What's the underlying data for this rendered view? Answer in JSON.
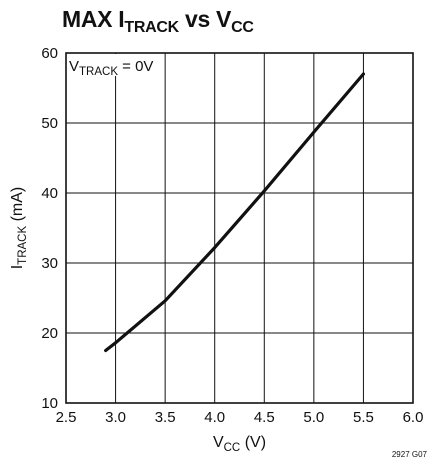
{
  "chart_data": {
    "type": "line",
    "title": {
      "main": "MAX I",
      "sub": "TRACK",
      "mid": " vs V",
      "sub2": "CC"
    },
    "xlabel": {
      "main": "V",
      "sub": "CC",
      "unit": " (V)"
    },
    "ylabel": {
      "main": "I",
      "sub": "TRACK",
      "unit": " (mA)"
    },
    "xlim": [
      2.5,
      6.0
    ],
    "ylim": [
      10,
      60
    ],
    "x_ticks": [
      "2.5",
      "3.0",
      "3.5",
      "4.0",
      "4.5",
      "5.0",
      "5.5",
      "6.0"
    ],
    "y_ticks": [
      "10",
      "20",
      "30",
      "40",
      "50",
      "60"
    ],
    "grid": true,
    "annotation": {
      "main": "V",
      "sub": "TRACK",
      "rest": " = 0V"
    },
    "figure_code": "2927 G07",
    "line_color": "#111111",
    "series": [
      {
        "x": [
          2.9,
          3.0,
          3.5,
          4.0,
          4.5,
          5.0,
          5.5
        ],
        "y": [
          17.5,
          18.6,
          24.6,
          32.2,
          40.3,
          48.7,
          57.0
        ]
      }
    ]
  }
}
